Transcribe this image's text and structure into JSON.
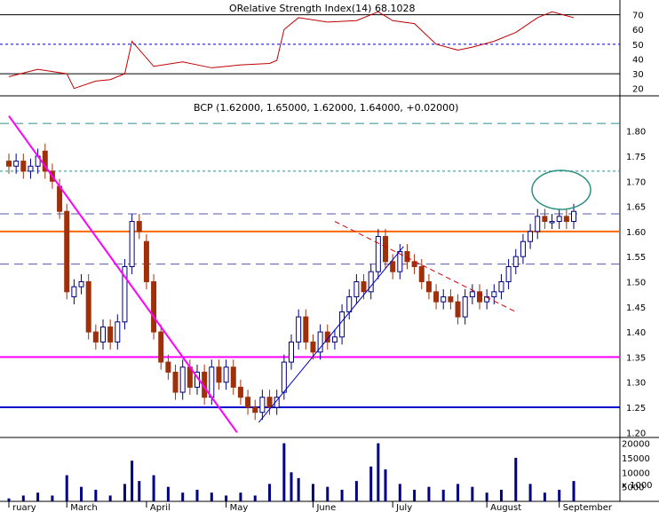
{
  "rsi": {
    "label": "Relative Strength Index (14)",
    "overlap_text": "ORelative Strength Index(14) 68.1028",
    "ticks": [
      70,
      60,
      50,
      40,
      30,
      20
    ],
    "levels": [
      70,
      50,
      30
    ],
    "ylim": [
      15,
      80
    ],
    "color": "#c00000"
  },
  "price": {
    "label": "BCP (1.62000, 1.65000, 1.62000, 1.64000, +0.02000)",
    "ticks": [
      "1.20",
      "1.25",
      "1.30",
      "1.35",
      "1.40",
      "1.45",
      "1.50",
      "1.55",
      "1.60",
      "1.65",
      "1.70",
      "1.75",
      "1.80"
    ],
    "ylim": [
      1.19,
      1.87
    ],
    "up_color": "#000080",
    "down_color": "#a0300a"
  },
  "volume": {
    "ticks": [
      "20000",
      "15000",
      "10000",
      "5000",
      "x 1000"
    ],
    "ylim": [
      0,
      22000
    ],
    "color": "#000080"
  },
  "months": [
    "ruary",
    "March",
    "April",
    "May",
    "June",
    "July",
    "August",
    "September"
  ],
  "colors": {
    "magenta_line": "#ff00ff",
    "blue_support": "#0000cc",
    "orange_resistance": "#ff6600",
    "teal_dash": "#2e8b8b",
    "circle": "#2e9080",
    "trend_red": "#cc0000",
    "trend_blue": "#0000cc"
  },
  "chart_data": {
    "type": "candlestick",
    "title": "BCP (1.62000, 1.65000, 1.62000, 1.64000, +0.02000)",
    "x_label": "",
    "y_label": "",
    "candles": [
      {
        "x": 0,
        "o": 1.74,
        "c": 1.73
      },
      {
        "x": 1,
        "o": 1.73,
        "c": 1.74
      },
      {
        "x": 2,
        "o": 1.74,
        "c": 1.72
      },
      {
        "x": 3,
        "o": 1.72,
        "c": 1.73
      },
      {
        "x": 4,
        "o": 1.73,
        "c": 1.75
      },
      {
        "x": 5,
        "o": 1.76,
        "c": 1.72
      },
      {
        "x": 6,
        "o": 1.72,
        "c": 1.7
      },
      {
        "x": 7,
        "o": 1.69,
        "c": 1.64
      },
      {
        "x": 8,
        "o": 1.64,
        "c": 1.48
      },
      {
        "x": 9,
        "o": 1.47,
        "c": 1.49
      },
      {
        "x": 10,
        "o": 1.49,
        "c": 1.5
      },
      {
        "x": 11,
        "o": 1.5,
        "c": 1.4
      },
      {
        "x": 12,
        "o": 1.4,
        "c": 1.38
      },
      {
        "x": 13,
        "o": 1.38,
        "c": 1.41
      },
      {
        "x": 14,
        "o": 1.41,
        "c": 1.38
      },
      {
        "x": 15,
        "o": 1.38,
        "c": 1.42
      },
      {
        "x": 16,
        "o": 1.42,
        "c": 1.53
      },
      {
        "x": 17,
        "o": 1.53,
        "c": 1.62
      },
      {
        "x": 18,
        "o": 1.62,
        "c": 1.6
      },
      {
        "x": 19,
        "o": 1.58,
        "c": 1.5
      },
      {
        "x": 20,
        "o": 1.5,
        "c": 1.4
      },
      {
        "x": 21,
        "o": 1.4,
        "c": 1.34
      },
      {
        "x": 22,
        "o": 1.34,
        "c": 1.32
      },
      {
        "x": 23,
        "o": 1.32,
        "c": 1.28
      },
      {
        "x": 24,
        "o": 1.28,
        "c": 1.33
      },
      {
        "x": 25,
        "o": 1.33,
        "c": 1.29
      },
      {
        "x": 26,
        "o": 1.29,
        "c": 1.32
      },
      {
        "x": 27,
        "o": 1.32,
        "c": 1.27
      },
      {
        "x": 28,
        "o": 1.27,
        "c": 1.33
      },
      {
        "x": 29,
        "o": 1.33,
        "c": 1.3
      },
      {
        "x": 30,
        "o": 1.3,
        "c": 1.33
      },
      {
        "x": 31,
        "o": 1.33,
        "c": 1.29
      },
      {
        "x": 32,
        "o": 1.29,
        "c": 1.27
      },
      {
        "x": 33,
        "o": 1.27,
        "c": 1.25
      },
      {
        "x": 34,
        "o": 1.25,
        "c": 1.24
      },
      {
        "x": 35,
        "o": 1.24,
        "c": 1.27
      },
      {
        "x": 36,
        "o": 1.27,
        "c": 1.25
      },
      {
        "x": 37,
        "o": 1.25,
        "c": 1.27
      },
      {
        "x": 38,
        "o": 1.28,
        "c": 1.34
      },
      {
        "x": 39,
        "o": 1.34,
        "c": 1.38
      },
      {
        "x": 40,
        "o": 1.38,
        "c": 1.43
      },
      {
        "x": 41,
        "o": 1.43,
        "c": 1.38
      },
      {
        "x": 42,
        "o": 1.38,
        "c": 1.36
      },
      {
        "x": 43,
        "o": 1.36,
        "c": 1.4
      },
      {
        "x": 44,
        "o": 1.4,
        "c": 1.38
      },
      {
        "x": 45,
        "o": 1.38,
        "c": 1.39
      },
      {
        "x": 46,
        "o": 1.39,
        "c": 1.44
      },
      {
        "x": 47,
        "o": 1.44,
        "c": 1.47
      },
      {
        "x": 48,
        "o": 1.47,
        "c": 1.5
      },
      {
        "x": 49,
        "o": 1.5,
        "c": 1.48
      },
      {
        "x": 50,
        "o": 1.48,
        "c": 1.52
      },
      {
        "x": 51,
        "o": 1.52,
        "c": 1.59
      },
      {
        "x": 52,
        "o": 1.59,
        "c": 1.54
      },
      {
        "x": 53,
        "o": 1.54,
        "c": 1.52
      },
      {
        "x": 54,
        "o": 1.52,
        "c": 1.56
      },
      {
        "x": 55,
        "o": 1.56,
        "c": 1.54
      },
      {
        "x": 56,
        "o": 1.54,
        "c": 1.53
      },
      {
        "x": 57,
        "o": 1.53,
        "c": 1.5
      },
      {
        "x": 58,
        "o": 1.5,
        "c": 1.48
      },
      {
        "x": 59,
        "o": 1.48,
        "c": 1.46
      },
      {
        "x": 60,
        "o": 1.46,
        "c": 1.47
      },
      {
        "x": 61,
        "o": 1.47,
        "c": 1.46
      },
      {
        "x": 62,
        "o": 1.46,
        "c": 1.43
      },
      {
        "x": 63,
        "o": 1.43,
        "c": 1.47
      },
      {
        "x": 64,
        "o": 1.47,
        "c": 1.48
      },
      {
        "x": 65,
        "o": 1.48,
        "c": 1.46
      },
      {
        "x": 66,
        "o": 1.46,
        "c": 1.47
      },
      {
        "x": 67,
        "o": 1.47,
        "c": 1.48
      },
      {
        "x": 68,
        "o": 1.48,
        "c": 1.5
      },
      {
        "x": 69,
        "o": 1.5,
        "c": 1.53
      },
      {
        "x": 70,
        "o": 1.53,
        "c": 1.55
      },
      {
        "x": 71,
        "o": 1.55,
        "c": 1.58
      },
      {
        "x": 72,
        "o": 1.58,
        "c": 1.6
      },
      {
        "x": 73,
        "o": 1.6,
        "c": 1.63
      },
      {
        "x": 74,
        "o": 1.63,
        "c": 1.62
      },
      {
        "x": 75,
        "o": 1.62,
        "c": 1.62
      },
      {
        "x": 76,
        "o": 1.62,
        "c": 1.63
      },
      {
        "x": 77,
        "o": 1.63,
        "c": 1.62
      },
      {
        "x": 78,
        "o": 1.62,
        "c": 1.64
      }
    ],
    "rsi": [
      {
        "x": 0,
        "y": 28
      },
      {
        "x": 4,
        "y": 33
      },
      {
        "x": 8,
        "y": 30
      },
      {
        "x": 9,
        "y": 20
      },
      {
        "x": 12,
        "y": 25
      },
      {
        "x": 14,
        "y": 26
      },
      {
        "x": 16,
        "y": 30
      },
      {
        "x": 17,
        "y": 52
      },
      {
        "x": 20,
        "y": 35
      },
      {
        "x": 24,
        "y": 38
      },
      {
        "x": 28,
        "y": 34
      },
      {
        "x": 32,
        "y": 36
      },
      {
        "x": 36,
        "y": 37
      },
      {
        "x": 37,
        "y": 39
      },
      {
        "x": 38,
        "y": 60
      },
      {
        "x": 40,
        "y": 68
      },
      {
        "x": 44,
        "y": 65
      },
      {
        "x": 48,
        "y": 66
      },
      {
        "x": 51,
        "y": 72
      },
      {
        "x": 53,
        "y": 66
      },
      {
        "x": 56,
        "y": 64
      },
      {
        "x": 59,
        "y": 50
      },
      {
        "x": 62,
        "y": 46
      },
      {
        "x": 64,
        "y": 48
      },
      {
        "x": 67,
        "y": 52
      },
      {
        "x": 70,
        "y": 58
      },
      {
        "x": 73,
        "y": 68
      },
      {
        "x": 75,
        "y": 72
      },
      {
        "x": 78,
        "y": 68
      }
    ],
    "volume": [
      {
        "x": 0,
        "v": 1000
      },
      {
        "x": 2,
        "v": 2000
      },
      {
        "x": 4,
        "v": 3000
      },
      {
        "x": 6,
        "v": 2000
      },
      {
        "x": 8,
        "v": 9000
      },
      {
        "x": 10,
        "v": 5000
      },
      {
        "x": 12,
        "v": 4000
      },
      {
        "x": 14,
        "v": 2000
      },
      {
        "x": 16,
        "v": 6000
      },
      {
        "x": 17,
        "v": 14000
      },
      {
        "x": 18,
        "v": 7000
      },
      {
        "x": 20,
        "v": 9000
      },
      {
        "x": 22,
        "v": 5000
      },
      {
        "x": 24,
        "v": 3000
      },
      {
        "x": 26,
        "v": 4000
      },
      {
        "x": 28,
        "v": 3000
      },
      {
        "x": 30,
        "v": 2000
      },
      {
        "x": 32,
        "v": 3000
      },
      {
        "x": 34,
        "v": 2000
      },
      {
        "x": 36,
        "v": 6000
      },
      {
        "x": 38,
        "v": 20000
      },
      {
        "x": 39,
        "v": 10000
      },
      {
        "x": 40,
        "v": 8000
      },
      {
        "x": 42,
        "v": 6000
      },
      {
        "x": 44,
        "v": 5000
      },
      {
        "x": 46,
        "v": 4000
      },
      {
        "x": 48,
        "v": 7000
      },
      {
        "x": 50,
        "v": 12000
      },
      {
        "x": 51,
        "v": 20000
      },
      {
        "x": 52,
        "v": 11000
      },
      {
        "x": 54,
        "v": 6000
      },
      {
        "x": 56,
        "v": 4000
      },
      {
        "x": 58,
        "v": 5000
      },
      {
        "x": 60,
        "v": 4000
      },
      {
        "x": 62,
        "v": 6000
      },
      {
        "x": 64,
        "v": 5000
      },
      {
        "x": 66,
        "v": 3000
      },
      {
        "x": 68,
        "v": 4000
      },
      {
        "x": 70,
        "v": 15000
      },
      {
        "x": 72,
        "v": 6000
      },
      {
        "x": 74,
        "v": 3000
      },
      {
        "x": 76,
        "v": 4000
      },
      {
        "x": 78,
        "v": 7000
      }
    ],
    "horizontal_levels": [
      1.6,
      1.35,
      1.25
    ]
  }
}
